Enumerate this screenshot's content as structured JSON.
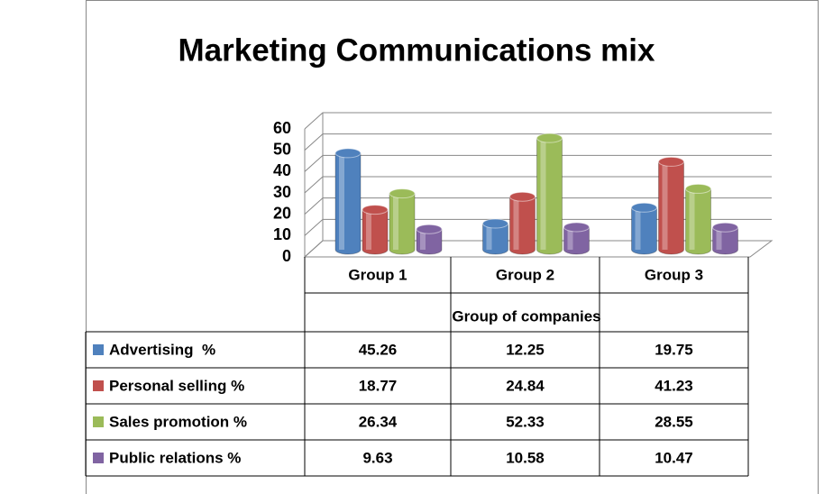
{
  "chart_data": {
    "type": "bar",
    "title": "Marketing Communications mix",
    "x_axis_label": "Group of companies",
    "categories": [
      "Group 1",
      "Group 2",
      "Group 3"
    ],
    "series": [
      {
        "name": "Advertising  %",
        "color": "#4f81bd",
        "values": [
          45.26,
          12.25,
          19.75
        ]
      },
      {
        "name": "Personal selling %",
        "color": "#c0504d",
        "values": [
          18.77,
          24.84,
          41.23
        ]
      },
      {
        "name": "Sales promotion %",
        "color": "#9bbb59",
        "values": [
          26.34,
          52.33,
          28.55
        ]
      },
      {
        "name": "Public relations %",
        "color": "#8064a2",
        "values": [
          9.63,
          10.58,
          10.47
        ]
      }
    ],
    "ylim": [
      0,
      60
    ],
    "yticks": [
      0,
      10,
      20,
      30,
      40,
      50,
      60
    ],
    "grid": true
  }
}
